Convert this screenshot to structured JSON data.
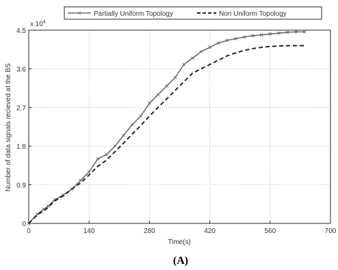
{
  "chart_data": {
    "type": "line",
    "xlabel": "Time(s)",
    "ylabel": "Number of data signals recieved at the BS",
    "y_multiplier_label": "x 10",
    "y_multiplier_exponent": "4",
    "xlim": [
      0,
      700
    ],
    "ylim": [
      0,
      45000
    ],
    "x_ticks": [
      "0",
      "140",
      "280",
      "420",
      "560",
      "700"
    ],
    "y_ticks": [
      "0",
      "0.9",
      "1.8",
      "2.7",
      "3.6",
      "4.5"
    ],
    "x_tick_values": [
      0,
      140,
      280,
      420,
      560,
      700
    ],
    "y_tick_values": [
      0,
      9000,
      18000,
      27000,
      36000,
      45000
    ],
    "grid": true,
    "legend_position": "top",
    "panel_label": "(A)",
    "series": [
      {
        "name": "Partially Uniform Topology",
        "color": "#6b6b6b",
        "style": "solid-x-markers",
        "x": [
          0,
          20,
          35,
          45,
          60,
          80,
          100,
          120,
          140,
          160,
          180,
          200,
          220,
          240,
          260,
          280,
          300,
          320,
          340,
          360,
          380,
          400,
          420,
          440,
          460,
          480,
          500,
          520,
          540,
          560,
          580,
          600,
          620,
          640
        ],
        "y": [
          0,
          2200,
          3300,
          4000,
          5500,
          6600,
          8000,
          10000,
          12000,
          15000,
          16000,
          18000,
          20500,
          23000,
          25000,
          28000,
          30000,
          32000,
          34000,
          37000,
          38500,
          40000,
          41000,
          42000,
          42600,
          43000,
          43400,
          43700,
          43900,
          44100,
          44300,
          44500,
          44600,
          44600
        ]
      },
      {
        "name": "Non Uniform Topology",
        "color": "#222222",
        "style": "dashed",
        "x": [
          0,
          20,
          40,
          60,
          80,
          100,
          120,
          140,
          160,
          180,
          200,
          220,
          240,
          260,
          280,
          300,
          320,
          340,
          360,
          380,
          400,
          420,
          440,
          460,
          480,
          500,
          520,
          540,
          560,
          580,
          600,
          620,
          640
        ],
        "y": [
          0,
          2000,
          3300,
          5200,
          6400,
          8000,
          9400,
          11300,
          13300,
          14700,
          16700,
          18700,
          20800,
          22800,
          25000,
          27000,
          29000,
          31000,
          33000,
          35000,
          36000,
          37000,
          38000,
          39000,
          39700,
          40300,
          40700,
          41000,
          41200,
          41300,
          41400,
          41400,
          41400
        ]
      }
    ]
  }
}
